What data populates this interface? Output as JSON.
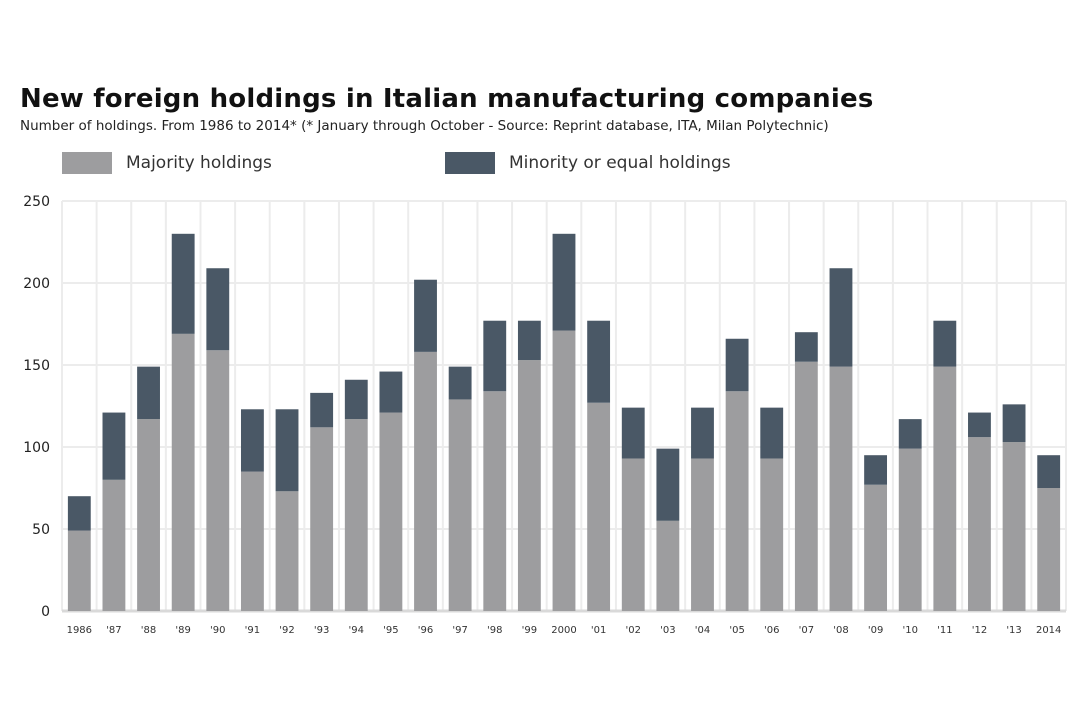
{
  "chart_data": {
    "type": "bar",
    "stacked": true,
    "title": "New foreign holdings in Italian manufacturing companies",
    "subtitle": "Number of holdings. From 1986 to 2014* (* January through October - Source: Reprint database, ITA, Milan Polytechnic)",
    "xlabel": "",
    "ylabel": "",
    "ylim": [
      0,
      250
    ],
    "yticks": [
      0,
      50,
      100,
      150,
      200,
      250
    ],
    "grid": true,
    "legend_position": "top",
    "categories": [
      "1986",
      "'87",
      "'88",
      "'89",
      "'90",
      "'91",
      "'92",
      "'93",
      "'94",
      "'95",
      "'96",
      "'97",
      "'98",
      "'99",
      "2000",
      "'01",
      "'02",
      "'03",
      "'04",
      "'05",
      "'06",
      "'07",
      "'08",
      "'09",
      "'10",
      "'11",
      "'12",
      "'13",
      "2014"
    ],
    "series": [
      {
        "name": "Majority holdings",
        "color": "#9d9d9f",
        "values": [
          49,
          80,
          117,
          169,
          159,
          85,
          73,
          112,
          117,
          121,
          158,
          129,
          134,
          153,
          171,
          127,
          93,
          55,
          93,
          134,
          93,
          152,
          149,
          77,
          99,
          149,
          106,
          103,
          75
        ]
      },
      {
        "name": "Minority or equal holdings",
        "color": "#4a5866",
        "values": [
          21,
          41,
          32,
          61,
          50,
          38,
          50,
          21,
          24,
          25,
          44,
          20,
          43,
          24,
          59,
          50,
          31,
          44,
          31,
          32,
          31,
          18,
          60,
          18,
          18,
          28,
          15,
          23,
          20
        ]
      }
    ]
  }
}
